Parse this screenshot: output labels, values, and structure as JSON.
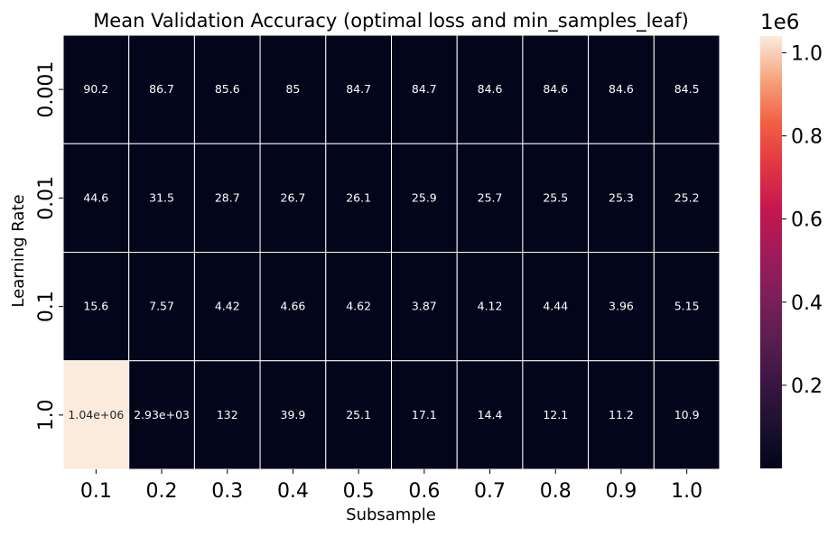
{
  "chart_data": {
    "type": "heatmap",
    "title": "Mean Validation Accuracy (optimal loss and min_samples_leaf)",
    "xlabel": "Subsample",
    "ylabel": "Learning Rate",
    "x_categories": [
      "0.1",
      "0.2",
      "0.3",
      "0.4",
      "0.5",
      "0.6",
      "0.7",
      "0.8",
      "0.9",
      "1.0"
    ],
    "y_categories": [
      "0.001",
      "0.01",
      "0.1",
      "1.0"
    ],
    "values": [
      [
        90.2,
        86.7,
        85.6,
        85,
        84.7,
        84.7,
        84.6,
        84.6,
        84.6,
        84.5
      ],
      [
        44.6,
        31.5,
        28.7,
        26.7,
        26.1,
        25.9,
        25.7,
        25.5,
        25.3,
        25.2
      ],
      [
        15.6,
        7.57,
        4.42,
        4.66,
        4.62,
        3.87,
        4.12,
        4.44,
        3.96,
        5.15
      ],
      [
        1040000,
        2930,
        132,
        39.9,
        25.1,
        17.1,
        14.4,
        12.1,
        11.2,
        10.9
      ]
    ],
    "labels": [
      [
        "90.2",
        "86.7",
        "85.6",
        "85",
        "84.7",
        "84.7",
        "84.6",
        "84.6",
        "84.6",
        "84.5"
      ],
      [
        "44.6",
        "31.5",
        "28.7",
        "26.7",
        "26.1",
        "25.9",
        "25.7",
        "25.5",
        "25.3",
        "25.2"
      ],
      [
        "15.6",
        "7.57",
        "4.42",
        "4.66",
        "4.62",
        "3.87",
        "4.12",
        "4.44",
        "3.96",
        "5.15"
      ],
      [
        "1.04e+06",
        "2.93e+03",
        "132",
        "39.9",
        "25.1",
        "17.1",
        "14.4",
        "12.1",
        "11.2",
        "10.9"
      ]
    ],
    "colorbar": {
      "colormap": "rocket",
      "min": 3.87,
      "max": 1040000,
      "ticks": [
        200000,
        400000,
        600000,
        800000,
        1000000
      ],
      "tick_labels": [
        "0.2",
        "0.4",
        "0.6",
        "0.8",
        "1.0"
      ],
      "scale_label": "1e6"
    },
    "grid": true
  }
}
